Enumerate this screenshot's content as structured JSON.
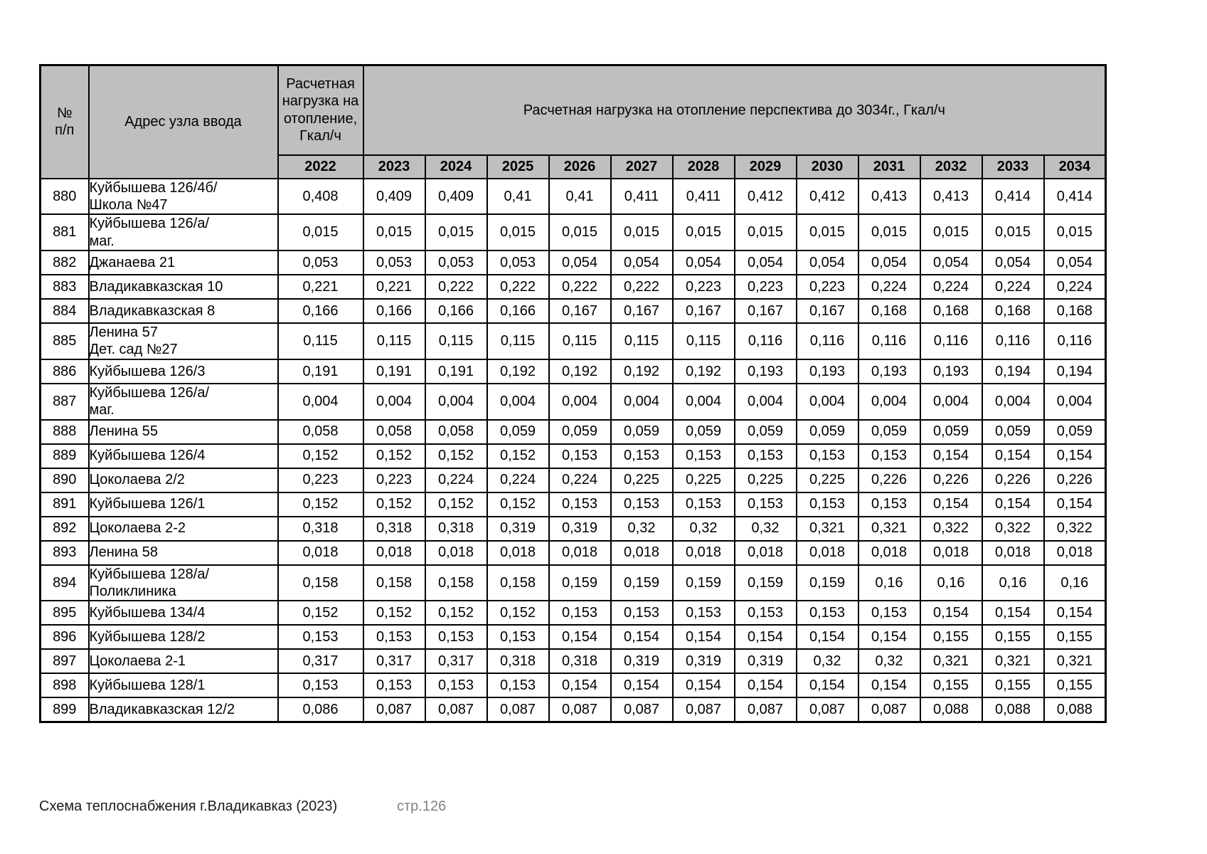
{
  "colors": {
    "header_bg": "#bfbfbf",
    "border": "#000000",
    "footer_muted": "#808080",
    "text": "#000000"
  },
  "footer": {
    "left_text": "Схема теплоснабжения г.Владикавказ (2023)",
    "page_label": "стр.126"
  },
  "table": {
    "header": {
      "col_num": "№ п/п",
      "col_address": "Адрес узла ввода",
      "col_load_2022": "Расчетная нагрузка на отопление, Гкал/ч",
      "col_perspective": "Расчетная нагрузка на отопление перспектива до 3034г., Гкал/ч"
    },
    "years": [
      "2022",
      "2023",
      "2024",
      "2025",
      "2026",
      "2027",
      "2028",
      "2029",
      "2030",
      "2031",
      "2032",
      "2033",
      "2034"
    ],
    "rows": [
      {
        "num": "880",
        "address_lines": [
          "Куйбышева 126/4б/",
          "Школа №47"
        ],
        "values": [
          "0,408",
          "0,409",
          "0,409",
          "0,41",
          "0,41",
          "0,411",
          "0,411",
          "0,412",
          "0,412",
          "0,413",
          "0,413",
          "0,414",
          "0,414"
        ]
      },
      {
        "num": "881",
        "address_lines": [
          "Куйбышева 126/а/",
          "маг."
        ],
        "values": [
          "0,015",
          "0,015",
          "0,015",
          "0,015",
          "0,015",
          "0,015",
          "0,015",
          "0,015",
          "0,015",
          "0,015",
          "0,015",
          "0,015",
          "0,015"
        ]
      },
      {
        "num": "882",
        "address_lines": [
          "Джанаева 21"
        ],
        "values": [
          "0,053",
          "0,053",
          "0,053",
          "0,053",
          "0,054",
          "0,054",
          "0,054",
          "0,054",
          "0,054",
          "0,054",
          "0,054",
          "0,054",
          "0,054"
        ]
      },
      {
        "num": "883",
        "address_lines": [
          "Владикавказская 10"
        ],
        "values": [
          "0,221",
          "0,221",
          "0,222",
          "0,222",
          "0,222",
          "0,222",
          "0,223",
          "0,223",
          "0,223",
          "0,224",
          "0,224",
          "0,224",
          "0,224"
        ]
      },
      {
        "num": "884",
        "address_lines": [
          "Владикавказская 8"
        ],
        "values": [
          "0,166",
          "0,166",
          "0,166",
          "0,166",
          "0,167",
          "0,167",
          "0,167",
          "0,167",
          "0,167",
          "0,168",
          "0,168",
          "0,168",
          "0,168"
        ]
      },
      {
        "num": "885",
        "address_lines": [
          "Ленина 57",
          "Дет. сад №27"
        ],
        "values": [
          "0,115",
          "0,115",
          "0,115",
          "0,115",
          "0,115",
          "0,115",
          "0,115",
          "0,116",
          "0,116",
          "0,116",
          "0,116",
          "0,116",
          "0,116"
        ]
      },
      {
        "num": "886",
        "address_lines": [
          "Куйбышева 126/3"
        ],
        "values": [
          "0,191",
          "0,191",
          "0,191",
          "0,192",
          "0,192",
          "0,192",
          "0,192",
          "0,193",
          "0,193",
          "0,193",
          "0,193",
          "0,194",
          "0,194"
        ]
      },
      {
        "num": "887",
        "address_lines": [
          "Куйбышева 126/а/",
          "маг."
        ],
        "values": [
          "0,004",
          "0,004",
          "0,004",
          "0,004",
          "0,004",
          "0,004",
          "0,004",
          "0,004",
          "0,004",
          "0,004",
          "0,004",
          "0,004",
          "0,004"
        ]
      },
      {
        "num": "888",
        "address_lines": [
          "Ленина 55"
        ],
        "values": [
          "0,058",
          "0,058",
          "0,058",
          "0,059",
          "0,059",
          "0,059",
          "0,059",
          "0,059",
          "0,059",
          "0,059",
          "0,059",
          "0,059",
          "0,059"
        ]
      },
      {
        "num": "889",
        "address_lines": [
          "Куйбышева 126/4"
        ],
        "values": [
          "0,152",
          "0,152",
          "0,152",
          "0,152",
          "0,153",
          "0,153",
          "0,153",
          "0,153",
          "0,153",
          "0,153",
          "0,154",
          "0,154",
          "0,154"
        ]
      },
      {
        "num": "890",
        "address_lines": [
          "Цоколаева 2/2"
        ],
        "values": [
          "0,223",
          "0,223",
          "0,224",
          "0,224",
          "0,224",
          "0,225",
          "0,225",
          "0,225",
          "0,225",
          "0,226",
          "0,226",
          "0,226",
          "0,226"
        ]
      },
      {
        "num": "891",
        "address_lines": [
          "Куйбышева 126/1"
        ],
        "values": [
          "0,152",
          "0,152",
          "0,152",
          "0,152",
          "0,153",
          "0,153",
          "0,153",
          "0,153",
          "0,153",
          "0,153",
          "0,154",
          "0,154",
          "0,154"
        ]
      },
      {
        "num": "892",
        "address_lines": [
          "Цоколаева 2-2"
        ],
        "values": [
          "0,318",
          "0,318",
          "0,318",
          "0,319",
          "0,319",
          "0,32",
          "0,32",
          "0,32",
          "0,321",
          "0,321",
          "0,322",
          "0,322",
          "0,322"
        ]
      },
      {
        "num": "893",
        "address_lines": [
          "Ленина 58"
        ],
        "values": [
          "0,018",
          "0,018",
          "0,018",
          "0,018",
          "0,018",
          "0,018",
          "0,018",
          "0,018",
          "0,018",
          "0,018",
          "0,018",
          "0,018",
          "0,018"
        ]
      },
      {
        "num": "894",
        "address_lines": [
          "Куйбышева 128/а/",
          "Поликлиника"
        ],
        "values": [
          "0,158",
          "0,158",
          "0,158",
          "0,158",
          "0,159",
          "0,159",
          "0,159",
          "0,159",
          "0,159",
          "0,16",
          "0,16",
          "0,16",
          "0,16"
        ]
      },
      {
        "num": "895",
        "address_lines": [
          "Куйбышева 134/4"
        ],
        "values": [
          "0,152",
          "0,152",
          "0,152",
          "0,152",
          "0,153",
          "0,153",
          "0,153",
          "0,153",
          "0,153",
          "0,153",
          "0,154",
          "0,154",
          "0,154"
        ]
      },
      {
        "num": "896",
        "address_lines": [
          "Куйбышева 128/2"
        ],
        "values": [
          "0,153",
          "0,153",
          "0,153",
          "0,153",
          "0,154",
          "0,154",
          "0,154",
          "0,154",
          "0,154",
          "0,154",
          "0,155",
          "0,155",
          "0,155"
        ]
      },
      {
        "num": "897",
        "address_lines": [
          "Цоколаева 2-1"
        ],
        "values": [
          "0,317",
          "0,317",
          "0,317",
          "0,318",
          "0,318",
          "0,319",
          "0,319",
          "0,319",
          "0,32",
          "0,32",
          "0,321",
          "0,321",
          "0,321"
        ]
      },
      {
        "num": "898",
        "address_lines": [
          "Куйбышева 128/1"
        ],
        "values": [
          "0,153",
          "0,153",
          "0,153",
          "0,153",
          "0,154",
          "0,154",
          "0,154",
          "0,154",
          "0,154",
          "0,154",
          "0,155",
          "0,155",
          "0,155"
        ]
      },
      {
        "num": "899",
        "address_lines": [
          "Владикавказская 12/2"
        ],
        "values": [
          "0,086",
          "0,087",
          "0,087",
          "0,087",
          "0,087",
          "0,087",
          "0,087",
          "0,087",
          "0,087",
          "0,087",
          "0,088",
          "0,088",
          "0,088"
        ]
      }
    ]
  }
}
